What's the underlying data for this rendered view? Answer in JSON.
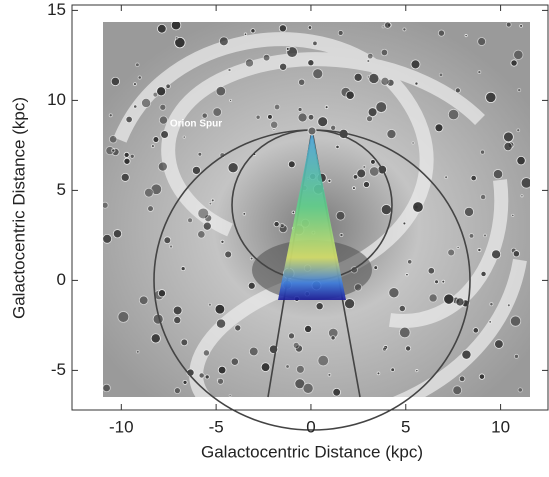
{
  "chart_data": {
    "type": "image-plot",
    "xlabel": "Galactocentric Distance (kpc)",
    "ylabel": "Galactocentric Distance (kpc)",
    "annotation": "Orion Spur",
    "xlim": [
      -12.6,
      12.5
    ],
    "ylim": [
      -7.2,
      15.3
    ],
    "xticks": [
      -10,
      -5,
      0,
      5,
      10
    ],
    "yticks": [
      -5,
      0,
      5,
      10,
      15
    ]
  }
}
